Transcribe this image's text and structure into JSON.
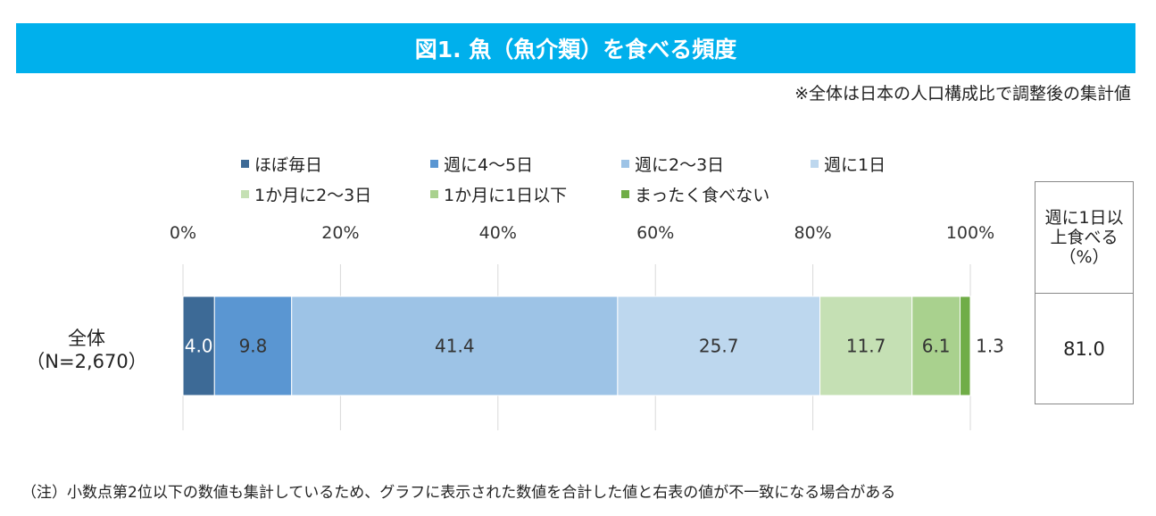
{
  "title": "図1. 魚（魚介類）を食べる頻度",
  "subnote": "※全体は日本の人口構成比で調整後の集計値",
  "legend": [
    {
      "label": "ほぼ毎日",
      "color": "#3d6a96"
    },
    {
      "label": "週に4～5日",
      "color": "#5a96d2"
    },
    {
      "label": "週に2～3日",
      "color": "#9dc3e6"
    },
    {
      "label": "週に1日",
      "color": "#bdd7ee"
    },
    {
      "label": "1か月に2～3日",
      "color": "#c5e0b4"
    },
    {
      "label": "1か月に1日以下",
      "color": "#a9d18e"
    },
    {
      "label": "まったく食べない",
      "color": "#70ad47"
    }
  ],
  "row_label_line1": "全体",
  "row_label_line2": "（N=2,670）",
  "side_table": {
    "header_line1": "週に1日以",
    "header_line2": "上食べる",
    "header_line3": "（%）",
    "value": "81.0"
  },
  "footnote": "（注）小数点第2位以下の数値も集計しているため、グラフに表示された数値を合計した値と右表の値が不一致になる場合がある",
  "chart_data": {
    "type": "bar",
    "orientation": "horizontal-stacked-100",
    "categories": [
      "全体（N=2,670）"
    ],
    "series": [
      {
        "name": "ほぼ毎日",
        "values": [
          4.0
        ],
        "label": "4.0"
      },
      {
        "name": "週に4～5日",
        "values": [
          9.8
        ],
        "label": "9.8"
      },
      {
        "name": "週に2～3日",
        "values": [
          41.4
        ],
        "label": "41.4"
      },
      {
        "name": "週に1日",
        "values": [
          25.7
        ],
        "label": "25.7"
      },
      {
        "name": "1か月に2～3日",
        "values": [
          11.7
        ],
        "label": "11.7"
      },
      {
        "name": "1か月に1日以下",
        "values": [
          6.1
        ],
        "label": "6.1"
      },
      {
        "name": "まったく食べない",
        "values": [
          1.3
        ],
        "label": "1.3"
      }
    ],
    "xlim": [
      0,
      100
    ],
    "ticks": [
      0,
      20,
      40,
      60,
      80,
      100
    ],
    "tick_labels": [
      "0%",
      "20%",
      "40%",
      "60%",
      "80%",
      "100%"
    ],
    "grid": true,
    "legend_position": "top"
  }
}
